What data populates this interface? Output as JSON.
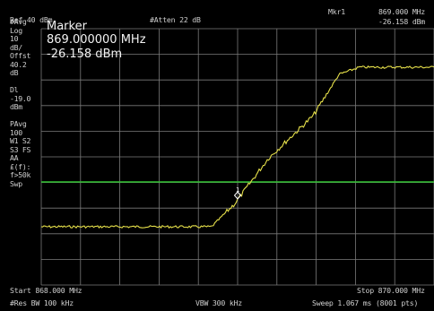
{
  "top": {
    "ref_level": "Ref 40 dBm",
    "atten": "#Atten 22 dB",
    "marker_label": "Mkr1",
    "marker_freq": "869.000 MHz",
    "marker_ampl": "-26.158 dBm"
  },
  "left_panel": [
    "#Avg",
    "Log",
    "10",
    "dB/",
    "Offst",
    "40.2",
    "dB",
    "",
    "Dl",
    "-19.0",
    "dBm",
    "",
    "PAvg",
    "100",
    "W1  S2",
    "S3  FS",
    "     AA",
    "£(f):",
    "f>50k",
    "Swp"
  ],
  "marker_box": {
    "title": "Marker",
    "freq": "869.000000 MHz",
    "ampl": "-26.158 dBm"
  },
  "bottom": {
    "start": "Start 868.000 MHz",
    "stop": "Stop 870.000 MHz",
    "rbw": "#Res BW 100 kHz",
    "vbw": "VBW 300 kHz",
    "sweep": "Sweep 1.067 ms (8001 pts)"
  },
  "marker_number": "1",
  "colors": {
    "trace": "#e6e04a",
    "display_line": "#2fbf2f",
    "grid": "#7a7a7a",
    "text": "#cfcfcf"
  }
}
